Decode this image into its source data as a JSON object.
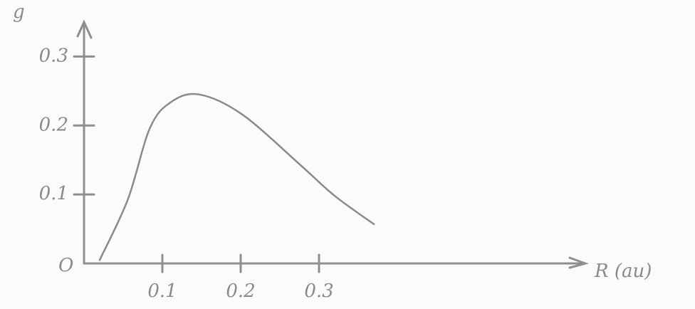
{
  "chart_data": {
    "type": "line",
    "y_label": "g",
    "x_label": "R (au)",
    "origin_label": "O",
    "x": [
      0.02,
      0.056,
      0.084,
      0.111,
      0.147,
      0.202,
      0.275,
      0.32,
      0.37
    ],
    "values": [
      0.005,
      0.093,
      0.196,
      0.234,
      0.245,
      0.216,
      0.144,
      0.098,
      0.057
    ],
    "color": "#8a8a8a",
    "xlim": [
      0,
      0.64
    ],
    "ylim": [
      0,
      0.35
    ],
    "xticks": [
      0.1,
      0.2,
      0.3
    ],
    "yticks": [
      0.1,
      0.2,
      0.3
    ]
  }
}
